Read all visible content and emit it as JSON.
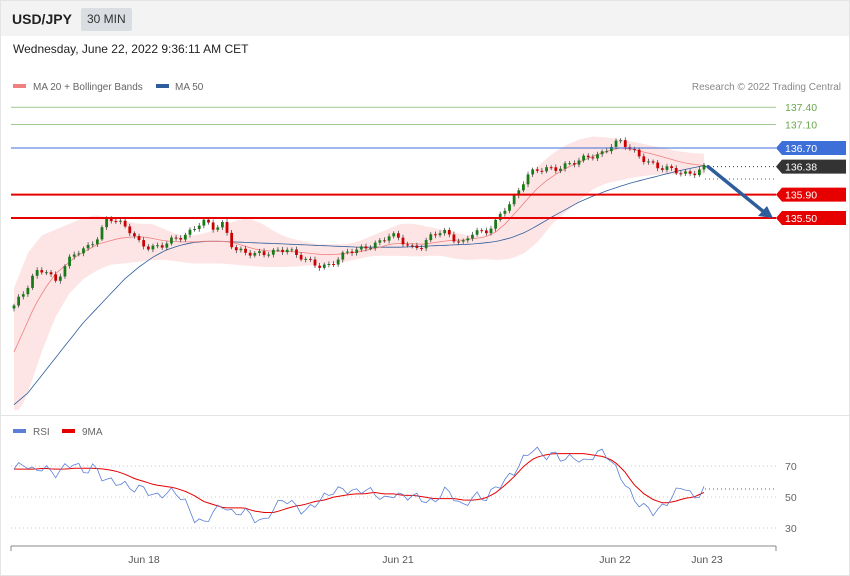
{
  "header": {
    "symbol": "USD/JPY",
    "timeframe": "30 MIN",
    "datetime": "Wednesday, June 22, 2022 9:36:11 AM CET"
  },
  "credit": "Research © 2022 Trading Central",
  "colors": {
    "ma20": "#f08080",
    "bands": "#fde1e1",
    "ma50": "#2e5d9b",
    "resistance": "#6aa84f",
    "pivot": "#3d6fd8",
    "support": "#e60000",
    "candle_up": "#1a7a1a",
    "candle_down": "#cc0000",
    "rsi": "#5b7fd6",
    "rsi_ma": "#e60000",
    "arrow": "#2e5d9b",
    "current": "#333333"
  },
  "chart_data": [
    {
      "type": "candlestick",
      "legend": [
        "MA 20 + Bollinger Bands",
        "MA 50"
      ],
      "legend_position": "top-left",
      "x_ticks": [
        "Jun 18",
        "Jun 21",
        "Jun 22",
        "Jun 23"
      ],
      "levels": [
        {
          "value": 137.4,
          "label": "137.40",
          "kind": "resistance"
        },
        {
          "value": 137.1,
          "label": "137.10",
          "kind": "resistance"
        },
        {
          "value": 136.7,
          "label": "136.70",
          "kind": "pivot"
        },
        {
          "value": 136.38,
          "label": "136.38",
          "kind": "current"
        },
        {
          "value": 135.9,
          "label": "135.90",
          "kind": "support"
        },
        {
          "value": 135.5,
          "label": "135.50",
          "kind": "support"
        }
      ],
      "price_path": [
        134.0,
        134.2,
        134.55,
        134.65,
        134.42,
        134.7,
        134.9,
        135.0,
        135.2,
        135.5,
        135.4,
        135.3,
        135.1,
        135.0,
        134.98,
        135.1,
        135.2,
        135.3,
        135.45,
        135.3,
        135.4,
        135.0,
        134.92,
        134.85,
        134.88,
        134.95,
        135.0,
        134.85,
        134.75,
        134.7,
        134.7,
        134.8,
        134.9,
        134.95,
        135.05,
        135.1,
        135.2,
        135.1,
        135.0,
        135.05,
        135.2,
        135.25,
        135.15,
        135.1,
        135.3,
        135.2,
        135.4,
        135.7,
        135.9,
        136.2,
        136.3,
        136.35,
        136.38,
        136.42,
        136.45,
        136.55,
        136.6,
        136.75,
        136.8,
        136.65,
        136.55,
        136.45,
        136.35,
        136.3,
        136.25,
        136.3,
        136.38
      ],
      "ma20_path": [
        133.2,
        133.6,
        134.0,
        134.3,
        134.55,
        134.7,
        134.85,
        134.95,
        135.05,
        135.1,
        135.15,
        135.17,
        135.18,
        135.16,
        135.12,
        135.1,
        135.09,
        135.09,
        135.1,
        135.1,
        135.1,
        135.08,
        135.02,
        134.97,
        134.94,
        134.93,
        134.93,
        134.92,
        134.9,
        134.88,
        134.87,
        134.88,
        134.9,
        134.92,
        134.96,
        135.0,
        135.05,
        135.07,
        135.06,
        135.05,
        135.07,
        135.1,
        135.12,
        135.12,
        135.15,
        135.17,
        135.25,
        135.4,
        135.6,
        135.8,
        136.0,
        136.15,
        136.27,
        136.37,
        136.45,
        136.53,
        136.6,
        136.66,
        136.7,
        136.68,
        136.64,
        136.6,
        136.55,
        136.5,
        136.45,
        136.42,
        136.4
      ],
      "ma50_path": [
        132.3,
        132.5,
        132.8,
        133.1,
        133.4,
        133.7,
        133.95,
        134.2,
        134.45,
        134.65,
        134.82,
        134.95,
        135.03,
        135.08,
        135.1,
        135.1,
        135.09,
        135.08,
        135.07,
        135.06,
        135.05,
        135.04,
        135.03,
        135.02,
        135.01,
        135.0,
        135.0,
        135.0,
        135.0,
        135.01,
        135.02,
        135.03,
        135.04,
        135.05,
        135.07,
        135.1,
        135.16,
        135.25,
        135.38,
        135.52,
        135.65,
        135.78,
        135.88,
        135.97,
        136.05,
        136.12,
        136.18,
        136.24,
        136.3,
        136.35,
        136.4
      ],
      "band_upper_path": [
        134.3,
        134.9,
        135.2,
        135.3,
        135.4,
        135.5,
        135.55,
        135.5,
        135.45,
        135.4,
        135.4,
        135.3,
        135.2,
        135.2,
        135.25,
        135.35,
        135.45,
        135.5,
        135.4,
        135.25,
        135.15,
        135.1,
        135.05,
        135.05,
        135.05,
        135.1,
        135.2,
        135.3,
        135.4,
        135.4,
        135.35,
        135.3,
        135.25,
        135.2,
        135.2,
        135.4,
        135.7,
        136.1,
        136.4,
        136.6,
        136.75,
        136.85,
        136.9,
        136.88,
        136.85,
        136.8,
        136.75,
        136.7,
        136.65,
        136.62,
        136.6
      ],
      "band_lower_path": [
        132.0,
        132.5,
        133.2,
        133.8,
        134.2,
        134.45,
        134.6,
        134.7,
        134.72,
        134.75,
        134.78,
        134.78,
        134.75,
        134.72,
        134.72,
        134.72,
        134.7,
        134.68,
        134.66,
        134.66,
        134.66,
        134.68,
        134.7,
        134.72,
        134.75,
        134.8,
        134.85,
        134.85,
        134.85,
        134.84,
        134.85,
        134.85,
        134.8,
        134.78,
        134.8,
        134.78,
        134.8,
        134.9,
        135.1,
        135.4,
        135.6,
        135.8,
        136.0,
        136.1,
        136.15,
        136.2,
        136.23,
        136.25,
        136.25,
        136.25,
        136.25
      ],
      "projection": {
        "from": 136.38,
        "to": 135.5
      }
    },
    {
      "type": "line",
      "legend": [
        "RSI",
        "9MA"
      ],
      "legend_position": "top-left",
      "y_ticks": [
        70,
        50,
        30
      ],
      "rsi": [
        68,
        72,
        66,
        70,
        64,
        69,
        72,
        66,
        70,
        61,
        60,
        58,
        55,
        56,
        50,
        52,
        54,
        48,
        36,
        33,
        41,
        45,
        38,
        42,
        36,
        34,
        43,
        49,
        45,
        40,
        45,
        50,
        54,
        55,
        53,
        55,
        53,
        48,
        52,
        50,
        51,
        48,
        46,
        55,
        50,
        43,
        52,
        48,
        55,
        60,
        66,
        75,
        82,
        76,
        78,
        74,
        76,
        72,
        77,
        80,
        70,
        60,
        48,
        44,
        40,
        44,
        52,
        58,
        48,
        56
      ],
      "rsi_ma": [
        68,
        68,
        68,
        68.5,
        68,
        68,
        68.5,
        68.5,
        68.5,
        68,
        67,
        65,
        62,
        60,
        58,
        57,
        56,
        54,
        51,
        47,
        45,
        43,
        43,
        43,
        41,
        40,
        40,
        42,
        44,
        45,
        47,
        48,
        50,
        51,
        52,
        52,
        53,
        52,
        52,
        51,
        51,
        50,
        49,
        49,
        49,
        48,
        48,
        49,
        52,
        57,
        63,
        70,
        75,
        77,
        78,
        78,
        78,
        78,
        77,
        76,
        73,
        67,
        58,
        52,
        48,
        46,
        47,
        49,
        50,
        53
      ]
    }
  ]
}
